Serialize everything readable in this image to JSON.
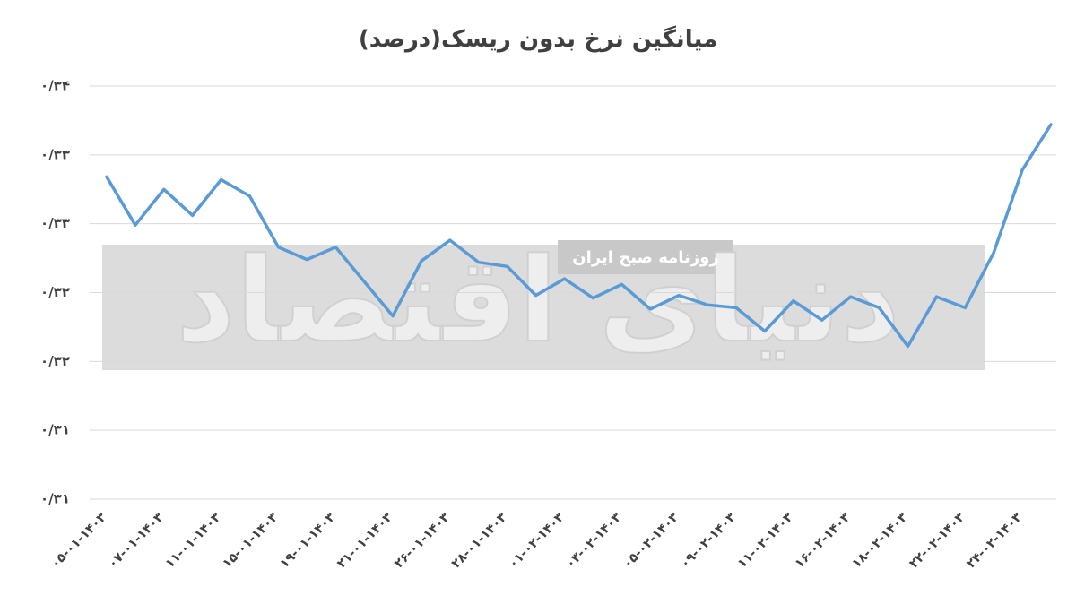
{
  "chart_data": {
    "type": "line",
    "title": "میانگین نرخ بدون ریسک(درصد)",
    "watermark": [
      "دنیای اقتصاد",
      "روزنامه صبح ایران"
    ],
    "categories": [
      "۰۵-۰۱-۱۴۰۳",
      null,
      "۰۷-۰۱-۱۴۰۳",
      null,
      "۱۱-۰۱-۱۴۰۳",
      null,
      "۱۵-۰۱-۱۴۰۳",
      null,
      "۱۹-۰۱-۱۴۰۳",
      null,
      "۲۱-۰۱-۱۴۰۳",
      null,
      "۲۶-۰۱-۱۴۰۳",
      null,
      "۲۸-۰۱-۱۴۰۳",
      null,
      "۰۱-۰۲-۱۴۰۳",
      null,
      "۰۳-۰۲-۱۴۰۳",
      null,
      "۰۵-۰۲-۱۴۰۳",
      null,
      "۰۹-۰۲-۱۴۰۳",
      null,
      "۱۱-۰۲-۱۴۰۳",
      null,
      "۱۶-۰۲-۱۴۰۳",
      null,
      "۱۸-۰۲-۱۴۰۳",
      null,
      "۲۲-۰۲-۱۴۰۳",
      null,
      "۲۴-۰۲-۱۴۰۳",
      null
    ],
    "values": [
      0.3334,
      0.3299,
      0.3325,
      0.3306,
      0.3332,
      0.332,
      0.3283,
      0.3274,
      0.3283,
      0.3258,
      0.3233,
      0.3273,
      0.3288,
      0.3272,
      0.3269,
      0.3248,
      0.326,
      0.3246,
      0.3256,
      0.3238,
      0.3248,
      0.3241,
      0.3239,
      0.3222,
      0.3244,
      0.323,
      0.3247,
      0.3239,
      0.3211,
      0.3247,
      0.3239,
      0.3279,
      0.3339,
      0.3372
    ],
    "color": "#5b9bd5",
    "ylim": [
      0.31,
      0.34
    ],
    "yticks": [
      {
        "value": 0.31,
        "label": "۰/۳۱"
      },
      {
        "value": 0.315,
        "label": "۰/۳۱"
      },
      {
        "value": 0.32,
        "label": "۰/۳۲"
      },
      {
        "value": 0.325,
        "label": "۰/۳۲"
      },
      {
        "value": 0.33,
        "label": "۰/۳۳"
      },
      {
        "value": 0.335,
        "label": "۰/۳۳"
      },
      {
        "value": 0.34,
        "label": "۰/۳۴"
      }
    ],
    "grid": true
  }
}
